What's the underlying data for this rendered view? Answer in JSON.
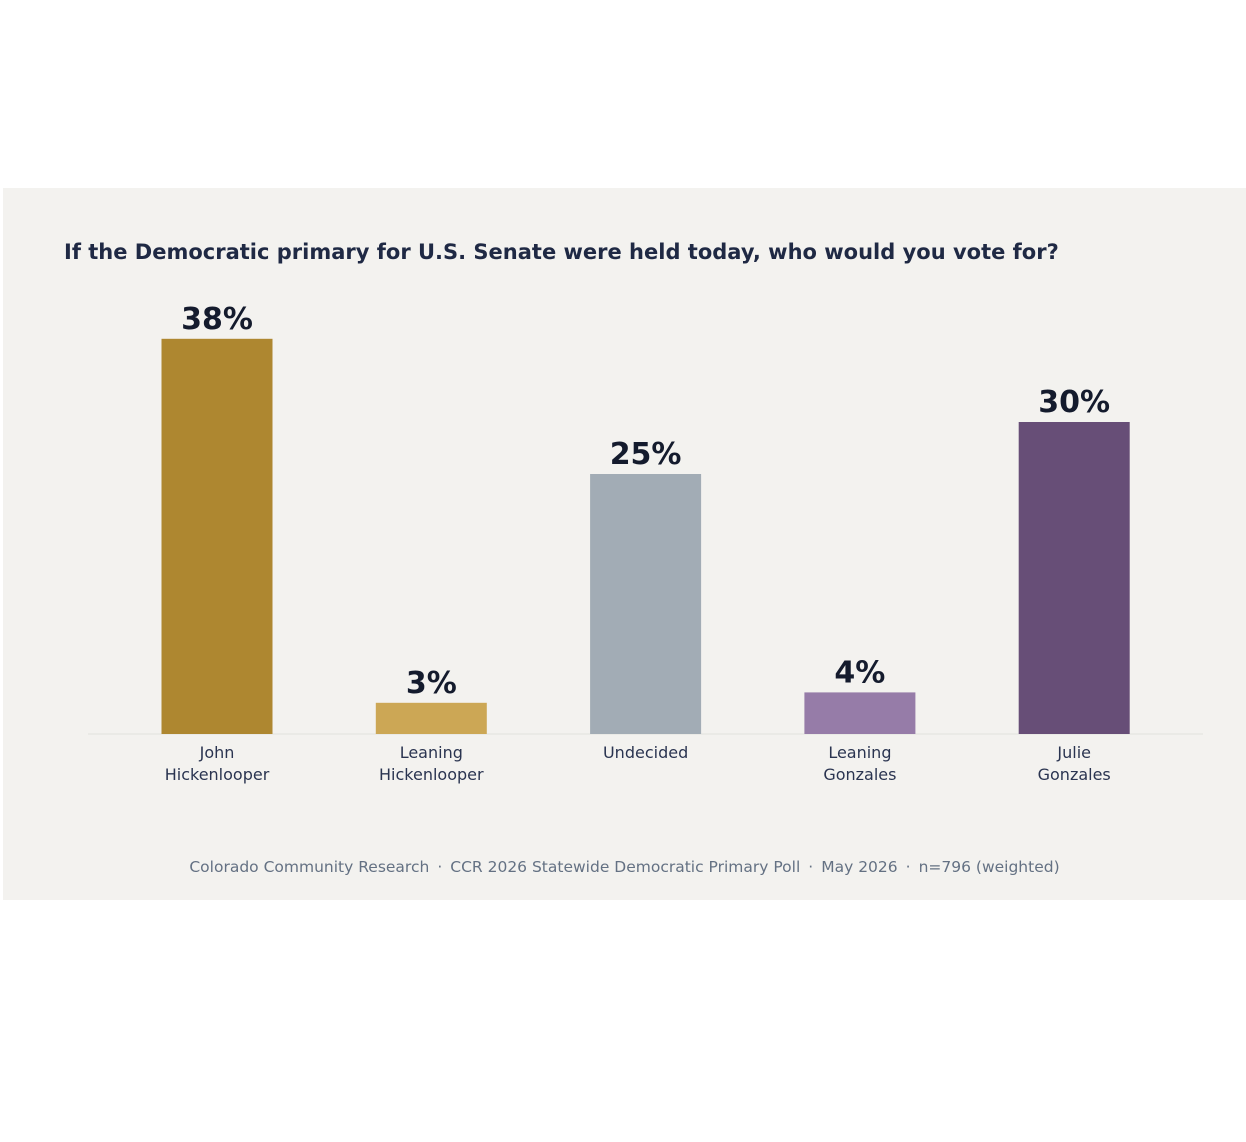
{
  "chart_data": {
    "type": "bar",
    "title": "If the Democratic primary for U.S. Senate were held today, who would you vote for?",
    "categories": [
      [
        "John",
        "Hickenlooper"
      ],
      [
        "Leaning",
        "Hickenlooper"
      ],
      [
        "Undecided"
      ],
      [
        "Leaning",
        "Gonzales"
      ],
      [
        "Julie",
        "Gonzales"
      ]
    ],
    "values": [
      38,
      3,
      25,
      4,
      30
    ],
    "value_labels": [
      "38%",
      "3%",
      "25%",
      "4%",
      "30%"
    ],
    "colors": [
      "#ae8730",
      "#cca755",
      "#a2acb5",
      "#967ca8",
      "#674e77"
    ],
    "ylim": [
      0,
      40
    ],
    "grid": false,
    "legend": "none",
    "xlabel": "",
    "ylabel": ""
  },
  "footer": {
    "source": "Colorado Community Research",
    "poll": "CCR 2026 Statewide Democratic Primary Poll",
    "date": "May 2026",
    "sample": "n=796 (weighted)",
    "separator": "·"
  }
}
